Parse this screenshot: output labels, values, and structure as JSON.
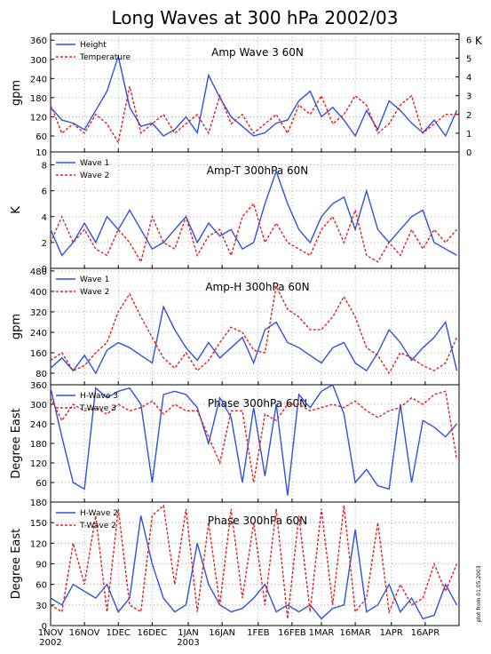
{
  "title": "Long Waves at 300 hPa 2002/03",
  "note": "plot from 01.05.2003",
  "chart_data": [
    {
      "type": "line",
      "title": "Amp Wave 3 60N",
      "ylabel": "gpm",
      "y2label": "K",
      "x": [
        0,
        5,
        10,
        15,
        20,
        25,
        30,
        35,
        40,
        45,
        50,
        55,
        60,
        65,
        70,
        75,
        80,
        85,
        90,
        95,
        100,
        105,
        110,
        115,
        120,
        125,
        130,
        135,
        140,
        145,
        150,
        155,
        160,
        165,
        170,
        175,
        180
      ],
      "xlim": [
        0,
        181
      ],
      "xticks": [
        {
          "value": 0,
          "label": "1NOV 2002"
        },
        {
          "value": 15,
          "label": "16NOV"
        },
        {
          "value": 30,
          "label": "1DEC"
        },
        {
          "value": 45,
          "label": "16DEC"
        },
        {
          "value": 61,
          "label": "1JAN 2003"
        },
        {
          "value": 76,
          "label": "16JAN"
        },
        {
          "value": 92,
          "label": "1FEB"
        },
        {
          "value": 107,
          "label": "16FEB"
        },
        {
          "value": 120,
          "label": "1MAR"
        },
        {
          "value": 135,
          "label": "16MAR"
        },
        {
          "value": 151,
          "label": "1APR"
        },
        {
          "value": 166,
          "label": "16APR"
        }
      ],
      "ylim": [
        10,
        380
      ],
      "yticks": [
        10,
        60,
        120,
        180,
        240,
        300,
        360
      ],
      "y2lim": [
        0,
        6.3
      ],
      "y2ticks": [
        0,
        1,
        2,
        3,
        4,
        5,
        6
      ],
      "grid": true,
      "series": [
        {
          "name": "Height",
          "color": "#3050e0",
          "values": [
            150,
            110,
            100,
            80,
            140,
            200,
            310,
            150,
            90,
            100,
            60,
            80,
            120,
            70,
            250,
            180,
            120,
            90,
            60,
            70,
            100,
            110,
            170,
            200,
            120,
            150,
            110,
            60,
            140,
            80,
            170,
            140,
            100,
            70,
            110,
            60,
            140
          ]
        },
        {
          "name": "Temperature",
          "color": "#e02020",
          "axis": "y2",
          "values": [
            2.5,
            1,
            1.5,
            1,
            2,
            1.5,
            0.5,
            3.5,
            1,
            1.5,
            2,
            1,
            1.5,
            2,
            1,
            3,
            1.5,
            2,
            1,
            1.5,
            2,
            1,
            2.5,
            2,
            3,
            1.5,
            2,
            3,
            2.5,
            1,
            1.5,
            2.5,
            3,
            1,
            1.5,
            2,
            2
          ]
        }
      ]
    },
    {
      "type": "line",
      "title": "Amp-T 300hPa 60N",
      "ylabel": "K",
      "x": [
        0,
        5,
        10,
        15,
        20,
        25,
        30,
        35,
        40,
        45,
        50,
        55,
        60,
        65,
        70,
        75,
        80,
        85,
        90,
        95,
        100,
        105,
        110,
        115,
        120,
        125,
        130,
        135,
        140,
        145,
        150,
        155,
        160,
        165,
        170,
        175,
        180
      ],
      "xlim": [
        0,
        181
      ],
      "xticks": [
        {
          "value": 0,
          "label": "1NOV 2002"
        },
        {
          "value": 15,
          "label": "16NOV"
        },
        {
          "value": 30,
          "label": "1DEC"
        },
        {
          "value": 45,
          "label": "16DEC"
        },
        {
          "value": 61,
          "label": "1JAN 2003"
        },
        {
          "value": 76,
          "label": "16JAN"
        },
        {
          "value": 92,
          "label": "1FEB"
        },
        {
          "value": 107,
          "label": "16FEB"
        },
        {
          "value": 120,
          "label": "1MAR"
        },
        {
          "value": 135,
          "label": "16MAR"
        },
        {
          "value": 151,
          "label": "1APR"
        },
        {
          "value": 166,
          "label": "16APR"
        }
      ],
      "ylim": [
        0,
        9
      ],
      "yticks": [
        0,
        2,
        4,
        6,
        8
      ],
      "grid": true,
      "series": [
        {
          "name": "Wave 1",
          "color": "#3050e0",
          "values": [
            3,
            1,
            2,
            3.5,
            2,
            4,
            3,
            4.5,
            3,
            1.5,
            2,
            3,
            4,
            2,
            3.5,
            2.5,
            3,
            1.5,
            2,
            5,
            7.5,
            5,
            3,
            2,
            4,
            5,
            5.5,
            3,
            6,
            3,
            2,
            3,
            4,
            4.5,
            2,
            1.5,
            1
          ]
        },
        {
          "name": "Wave 2",
          "color": "#e02020",
          "values": [
            2,
            4,
            2,
            3,
            1.5,
            1,
            3,
            2,
            0.5,
            4,
            2,
            1.5,
            4,
            1,
            2.5,
            3,
            1,
            4,
            5,
            2,
            3.5,
            2,
            1.5,
            1,
            3,
            4,
            2,
            4.5,
            1,
            0.5,
            2,
            1,
            3,
            1.5,
            3,
            2,
            3
          ]
        }
      ]
    },
    {
      "type": "line",
      "title": "Amp-H 300hPa 60N",
      "ylabel": "gpm",
      "x": [
        0,
        5,
        10,
        15,
        20,
        25,
        30,
        35,
        40,
        45,
        50,
        55,
        60,
        65,
        70,
        75,
        80,
        85,
        90,
        95,
        100,
        105,
        110,
        115,
        120,
        125,
        130,
        135,
        140,
        145,
        150,
        155,
        160,
        165,
        170,
        175,
        180
      ],
      "xlim": [
        0,
        181
      ],
      "xticks": [
        {
          "value": 0,
          "label": "1NOV 2002"
        },
        {
          "value": 15,
          "label": "16NOV"
        },
        {
          "value": 30,
          "label": "1DEC"
        },
        {
          "value": 45,
          "label": "16DEC"
        },
        {
          "value": 61,
          "label": "1JAN 2003"
        },
        {
          "value": 76,
          "label": "16JAN"
        },
        {
          "value": 92,
          "label": "1FEB"
        },
        {
          "value": 107,
          "label": "16FEB"
        },
        {
          "value": 120,
          "label": "1MAR"
        },
        {
          "value": 135,
          "label": "16MAR"
        },
        {
          "value": 151,
          "label": "1APR"
        },
        {
          "value": 166,
          "label": "16APR"
        }
      ],
      "ylim": [
        35,
        490
      ],
      "yticks": [
        80,
        160,
        240,
        320,
        400,
        480
      ],
      "grid": true,
      "series": [
        {
          "name": "Wave 1",
          "color": "#3050e0",
          "values": [
            100,
            140,
            90,
            150,
            80,
            170,
            200,
            180,
            150,
            120,
            340,
            250,
            180,
            130,
            200,
            140,
            180,
            220,
            120,
            250,
            280,
            200,
            180,
            150,
            120,
            180,
            200,
            120,
            90,
            160,
            250,
            200,
            130,
            180,
            220,
            280,
            90
          ]
        },
        {
          "name": "Wave 2",
          "color": "#e02020",
          "values": [
            130,
            160,
            90,
            110,
            160,
            200,
            320,
            390,
            300,
            220,
            140,
            100,
            160,
            90,
            130,
            200,
            260,
            240,
            170,
            160,
            420,
            330,
            300,
            250,
            250,
            300,
            380,
            300,
            180,
            150,
            80,
            160,
            140,
            110,
            90,
            120,
            220
          ]
        }
      ]
    },
    {
      "type": "line",
      "title": "Phase 300hPa 60N",
      "ylabel": "Degree East",
      "x": [
        0,
        5,
        10,
        15,
        20,
        25,
        30,
        35,
        40,
        45,
        50,
        55,
        60,
        65,
        70,
        75,
        80,
        85,
        90,
        95,
        100,
        105,
        110,
        115,
        120,
        125,
        130,
        135,
        140,
        145,
        150,
        155,
        160,
        165,
        170,
        175,
        180
      ],
      "xlim": [
        0,
        181
      ],
      "xticks": [
        {
          "value": 0,
          "label": "1NOV 2002"
        },
        {
          "value": 15,
          "label": "16NOV"
        },
        {
          "value": 30,
          "label": "1DEC"
        },
        {
          "value": 45,
          "label": "16DEC"
        },
        {
          "value": 61,
          "label": "1JAN 2003"
        },
        {
          "value": 76,
          "label": "16JAN"
        },
        {
          "value": 92,
          "label": "1FEB"
        },
        {
          "value": 107,
          "label": "16FEB"
        },
        {
          "value": 120,
          "label": "1MAR"
        },
        {
          "value": 135,
          "label": "16MAR"
        },
        {
          "value": 151,
          "label": "1APR"
        },
        {
          "value": 166,
          "label": "16APR"
        }
      ],
      "ylim": [
        0,
        360
      ],
      "yticks": [
        60,
        120,
        180,
        240,
        300,
        360
      ],
      "grid": true,
      "series": [
        {
          "name": "H-Wave 3",
          "color": "#3050e0",
          "values": [
            350,
            200,
            60,
            40,
            350,
            320,
            340,
            350,
            300,
            60,
            330,
            340,
            330,
            290,
            180,
            320,
            260,
            60,
            290,
            80,
            300,
            20,
            330,
            290,
            340,
            360,
            270,
            60,
            100,
            50,
            40,
            300,
            60,
            250,
            230,
            200,
            240
          ]
        },
        {
          "name": "T-Wave 3",
          "color": "#e02020",
          "values": [
            320,
            250,
            300,
            280,
            290,
            270,
            300,
            280,
            290,
            310,
            270,
            300,
            280,
            280,
            200,
            120,
            280,
            280,
            60,
            270,
            250,
            300,
            300,
            280,
            290,
            300,
            290,
            310,
            280,
            260,
            280,
            290,
            320,
            300,
            330,
            340,
            130
          ]
        }
      ]
    },
    {
      "type": "line",
      "title": "Phase 300hPa 60N",
      "ylabel": "Degree East",
      "x": [
        0,
        5,
        10,
        15,
        20,
        25,
        30,
        35,
        40,
        45,
        50,
        55,
        60,
        65,
        70,
        75,
        80,
        85,
        90,
        95,
        100,
        105,
        110,
        115,
        120,
        125,
        130,
        135,
        140,
        145,
        150,
        155,
        160,
        165,
        170,
        175,
        180
      ],
      "xlim": [
        0,
        181
      ],
      "xticks": [
        {
          "value": 0,
          "label": "1NOV 2002"
        },
        {
          "value": 15,
          "label": "16NOV"
        },
        {
          "value": 30,
          "label": "1DEC"
        },
        {
          "value": 45,
          "label": "16DEC"
        },
        {
          "value": 61,
          "label": "1JAN 2003"
        },
        {
          "value": 76,
          "label": "16JAN"
        },
        {
          "value": 92,
          "label": "1FEB"
        },
        {
          "value": 107,
          "label": "16FEB"
        },
        {
          "value": 120,
          "label": "1MAR"
        },
        {
          "value": 135,
          "label": "16MAR"
        },
        {
          "value": 151,
          "label": "1APR"
        },
        {
          "value": 166,
          "label": "16APR"
        }
      ],
      "ylim": [
        0,
        180
      ],
      "yticks": [
        0,
        30,
        60,
        90,
        120,
        150,
        180
      ],
      "grid": true,
      "series": [
        {
          "name": "H-Wave 2",
          "color": "#3050e0",
          "values": [
            40,
            30,
            60,
            50,
            40,
            60,
            20,
            40,
            160,
            90,
            40,
            20,
            30,
            120,
            60,
            30,
            20,
            25,
            40,
            60,
            20,
            30,
            20,
            30,
            10,
            25,
            30,
            140,
            20,
            30,
            60,
            20,
            40,
            10,
            15,
            60,
            30
          ]
        },
        {
          "name": "T-Wave 2",
          "color": "#e02020",
          "values": [
            30,
            20,
            120,
            60,
            160,
            20,
            170,
            30,
            20,
            160,
            175,
            60,
            170,
            20,
            150,
            30,
            170,
            40,
            150,
            30,
            170,
            10,
            160,
            20,
            170,
            30,
            175,
            20,
            40,
            150,
            20,
            60,
            30,
            40,
            90,
            50,
            90
          ]
        }
      ]
    }
  ]
}
